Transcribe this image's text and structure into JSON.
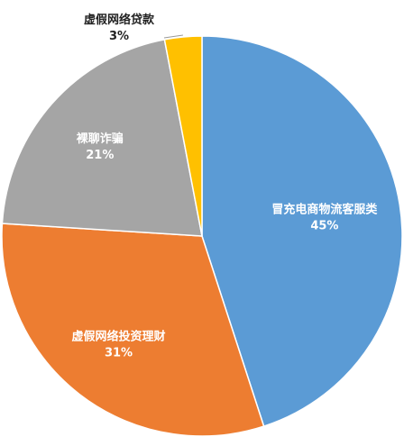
{
  "chart_data": {
    "type": "pie",
    "title": "",
    "start_angle_deg": 0,
    "direction": "clockwise",
    "slices": [
      {
        "label": "冒充电商物流客服类",
        "value": 45,
        "value_label": "45%",
        "color": "#5b9bd5",
        "label_position": "inside"
      },
      {
        "label": "虚假网络投资理财",
        "value": 31,
        "value_label": "31%",
        "color": "#ed7d31",
        "label_position": "inside"
      },
      {
        "label": "裸聊诈骗",
        "value": 21,
        "value_label": "21%",
        "color": "#a5a5a5",
        "label_position": "inside"
      },
      {
        "label": "虚假网络贷款",
        "value": 3,
        "value_label": "3%",
        "color": "#ffc000",
        "label_position": "outside"
      }
    ],
    "legend": "none"
  }
}
